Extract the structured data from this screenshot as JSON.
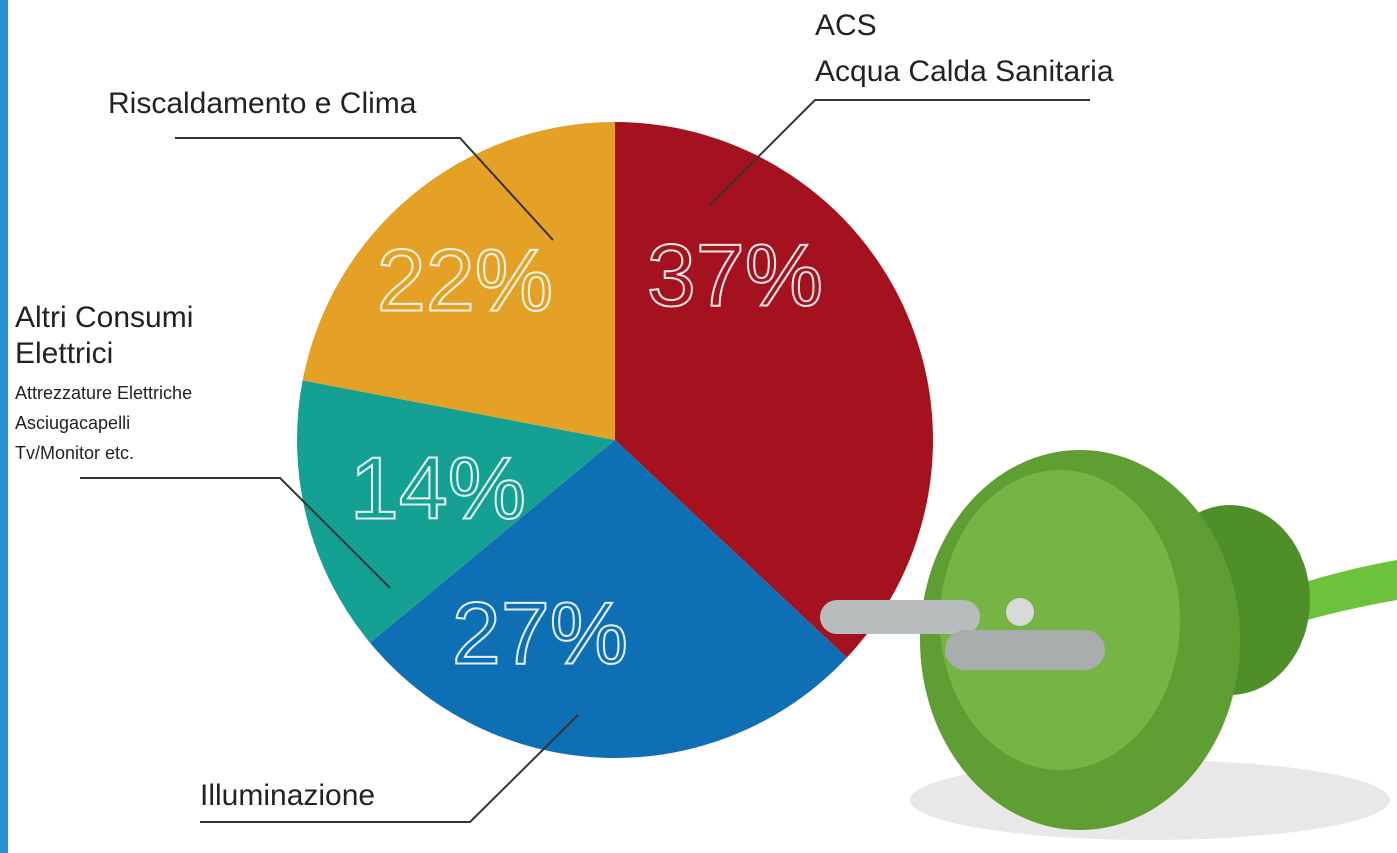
{
  "chart_data": {
    "type": "pie",
    "categories": [
      "ACS",
      "Illuminazione",
      "Altri Consumi Elettrici",
      "Riscaldamento e Clima"
    ],
    "values": [
      37,
      27,
      14,
      22
    ],
    "value_labels": [
      "37%",
      "27%",
      "14%",
      "22%"
    ],
    "colors": [
      "#a3121e",
      "#0f6fb5",
      "#14a092",
      "#e5a126"
    ],
    "acs_full_name": "Acqua Calda Sanitaria",
    "altri_details": [
      "Attrezzature Elettriche",
      "Asciugacapelli",
      "Tv/Monitor etc."
    ]
  }
}
